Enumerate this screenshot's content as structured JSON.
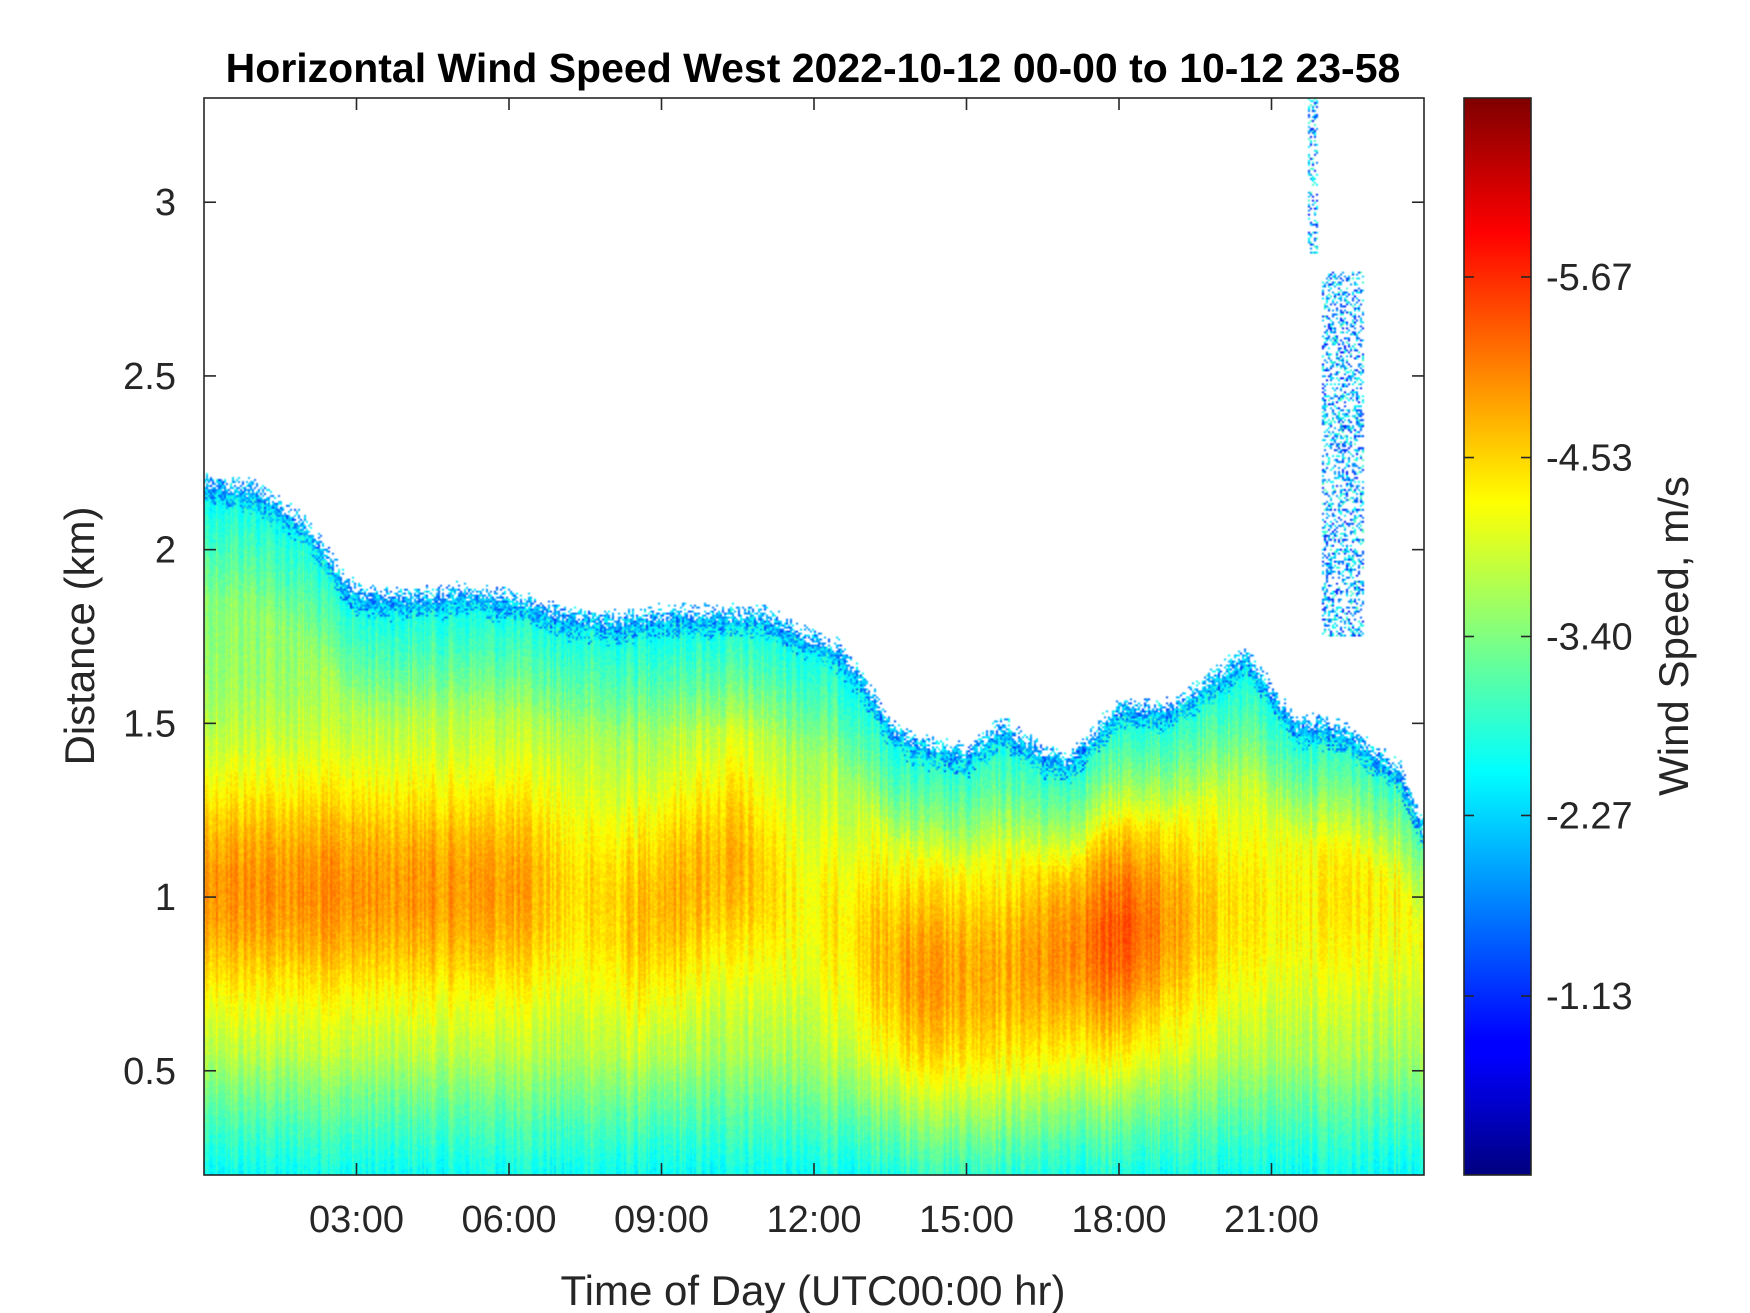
{
  "chart_data": {
    "type": "heatmap",
    "title": "Horizontal Wind Speed West 2022-10-12 00-00 to 10-12 23-58",
    "xlabel": "Time of Day (UTC00:00 hr)",
    "ylabel": "Distance (km)",
    "colorbar_label": "Wind Speed, m/s",
    "colormap": "jet",
    "x_range_hours": [
      0,
      24
    ],
    "y_range_km": [
      0.2,
      3.3
    ],
    "color_range": [
      -6.8,
      0
    ],
    "x_ticks": [
      {
        "value": 3,
        "label": "03:00"
      },
      {
        "value": 6,
        "label": "06:00"
      },
      {
        "value": 9,
        "label": "09:00"
      },
      {
        "value": 12,
        "label": "12:00"
      },
      {
        "value": 15,
        "label": "15:00"
      },
      {
        "value": 18,
        "label": "18:00"
      },
      {
        "value": 21,
        "label": "21:00"
      }
    ],
    "y_ticks": [
      {
        "value": 0.5,
        "label": "0.5"
      },
      {
        "value": 1,
        "label": "1"
      },
      {
        "value": 1.5,
        "label": "1.5"
      },
      {
        "value": 2,
        "label": "2"
      },
      {
        "value": 2.5,
        "label": "2.5"
      },
      {
        "value": 3,
        "label": "3"
      }
    ],
    "colorbar_ticks": [
      {
        "value": -5.67,
        "label": "-5.67"
      },
      {
        "value": -4.53,
        "label": "-4.53"
      },
      {
        "value": -3.4,
        "label": "-3.40"
      },
      {
        "value": -2.27,
        "label": "-2.27"
      },
      {
        "value": -1.13,
        "label": "-1.13"
      }
    ],
    "data_top_km": [
      [
        0,
        2.2
      ],
      [
        1,
        2.18
      ],
      [
        2,
        2.08
      ],
      [
        2.6,
        1.95
      ],
      [
        3,
        1.88
      ],
      [
        4,
        1.87
      ],
      [
        5,
        1.88
      ],
      [
        6,
        1.87
      ],
      [
        7,
        1.82
      ],
      [
        8,
        1.8
      ],
      [
        9,
        1.82
      ],
      [
        10,
        1.82
      ],
      [
        11,
        1.82
      ],
      [
        11.5,
        1.78
      ],
      [
        12,
        1.75
      ],
      [
        12.5,
        1.72
      ],
      [
        13,
        1.62
      ],
      [
        13.5,
        1.5
      ],
      [
        14,
        1.45
      ],
      [
        15,
        1.42
      ],
      [
        15.7,
        1.5
      ],
      [
        16.5,
        1.42
      ],
      [
        17,
        1.4
      ],
      [
        18,
        1.55
      ],
      [
        19,
        1.55
      ],
      [
        20,
        1.65
      ],
      [
        20.5,
        1.7
      ],
      [
        21,
        1.6
      ],
      [
        21.5,
        1.5
      ],
      [
        22,
        1.5
      ],
      [
        22.5,
        1.48
      ],
      [
        23,
        1.42
      ],
      [
        23.5,
        1.38
      ],
      [
        24,
        1.2
      ]
    ],
    "wind_max_core": [
      {
        "start_hour": 0,
        "end_hour": 7,
        "height_km": 1.02,
        "speed_ms": -5.0
      },
      {
        "start_hour": 8,
        "end_hour": 10.5,
        "height_km": 1.05,
        "speed_ms": -4.7
      },
      {
        "start_hour": 13,
        "end_hour": 15.5,
        "height_km": 0.78,
        "speed_ms": -4.9
      },
      {
        "start_hour": 16.8,
        "end_hour": 19,
        "height_km": 0.9,
        "speed_ms": -5.3
      },
      {
        "start_hour": 22.5,
        "end_hour": 24,
        "height_km": 1.0,
        "speed_ms": -4.4
      }
    ],
    "surface_layer": {
      "height_km": 0.25,
      "speed_ms": -2.6
    },
    "isolated_returns": [
      {
        "start_hour": 21.7,
        "end_hour": 21.9,
        "bottom_km": 2.85,
        "top_km": 3.3
      },
      {
        "start_hour": 22.0,
        "end_hour": 22.8,
        "bottom_km": 1.75,
        "top_km": 2.8
      }
    ]
  }
}
